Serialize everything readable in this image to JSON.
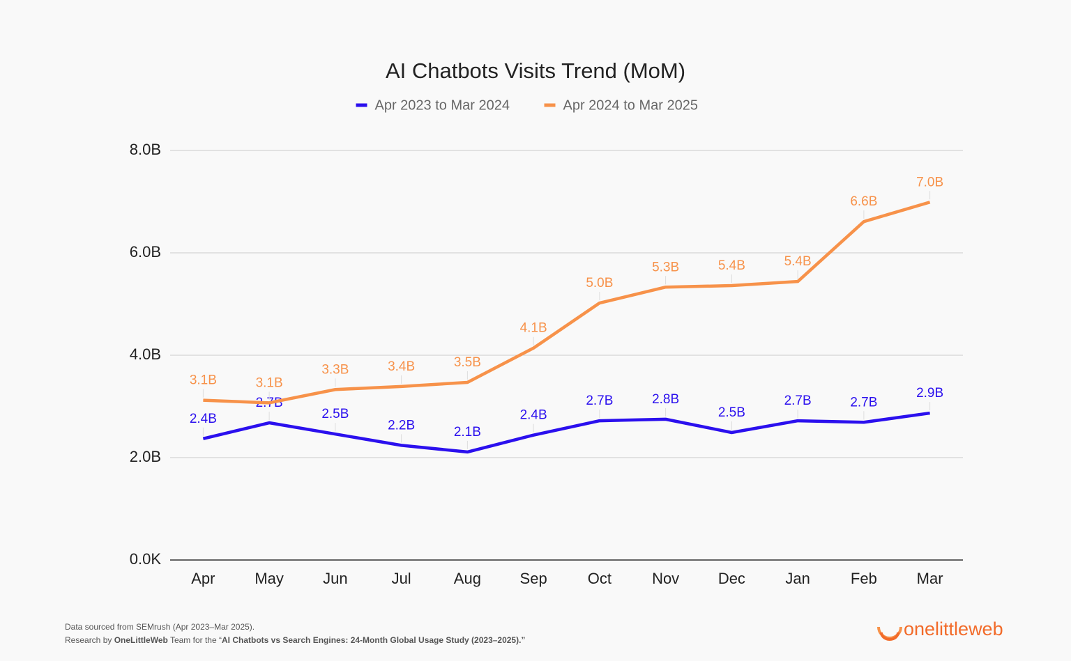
{
  "chart_data": {
    "type": "line",
    "title": "AI Chatbots Visits Trend (MoM)",
    "categories": [
      "Apr",
      "May",
      "Jun",
      "Jul",
      "Aug",
      "Sep",
      "Oct",
      "Nov",
      "Dec",
      "Jan",
      "Feb",
      "Mar"
    ],
    "series": [
      {
        "name": "Apr 2023 to Mar 2024",
        "color": "#2b10ee",
        "values": [
          2.37,
          2.68,
          2.46,
          2.24,
          2.11,
          2.44,
          2.72,
          2.75,
          2.49,
          2.72,
          2.69,
          2.87
        ],
        "value_labels": [
          "2.4B",
          "2.7B",
          "2.5B",
          "2.2B",
          "2.1B",
          "2.4B",
          "2.7B",
          "2.8B",
          "2.5B",
          "2.7B",
          "2.7B",
          "2.9B"
        ]
      },
      {
        "name": "Apr 2024 to Mar 2025",
        "color": "#f7924a",
        "values": [
          3.12,
          3.07,
          3.33,
          3.39,
          3.47,
          4.14,
          5.02,
          5.33,
          5.36,
          5.44,
          6.61,
          6.99
        ],
        "value_labels": [
          "3.1B",
          "3.1B",
          "3.3B",
          "3.4B",
          "3.5B",
          "4.1B",
          "5.0B",
          "5.3B",
          "5.4B",
          "5.4B",
          "6.6B",
          "7.0B"
        ]
      }
    ],
    "ylim": [
      0,
      8
    ],
    "yticks": [
      {
        "value": 0,
        "label": "0.0K"
      },
      {
        "value": 2,
        "label": "2.0B"
      },
      {
        "value": 4,
        "label": "4.0B"
      },
      {
        "value": 6,
        "label": "6.0B"
      },
      {
        "value": 8,
        "label": "8.0B"
      }
    ],
    "grid": true,
    "legend": "top",
    "source": "Data sourced from SEMrush (Apr 2023–Mar 2025).",
    "credit": [
      "Research by ",
      "OneLittleWeb",
      " Team for the “",
      "AI Chatbots vs Search Engines: 24-Month Global Usage Study (2023–2025).”"
    ],
    "logo": "onelittleweb"
  }
}
